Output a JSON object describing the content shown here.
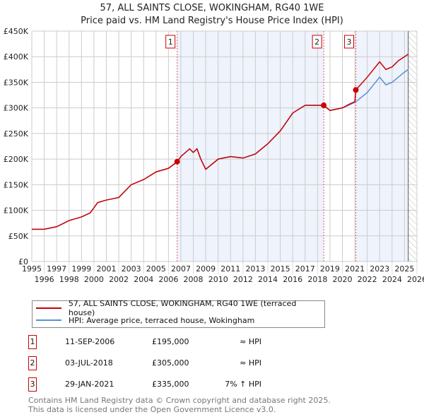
{
  "header": {
    "title": "57, ALL SAINTS CLOSE, WOKINGHAM, RG40 1WE",
    "subtitle": "Price paid vs. HM Land Registry's House Price Index (HPI)"
  },
  "chart_data": {
    "type": "line",
    "title": "57, ALL SAINTS CLOSE, WOKINGHAM, RG40 1WE",
    "subtitle": "Price paid vs. HM Land Registry's House Price Index (HPI)",
    "xlim": [
      1995,
      2026
    ],
    "ylim": [
      0,
      450000
    ],
    "x_ticks": [
      "1995",
      "1996",
      "1997",
      "1998",
      "1999",
      "2000",
      "2001",
      "2002",
      "2003",
      "2004",
      "2005",
      "2006",
      "2007",
      "2008",
      "2009",
      "2010",
      "2011",
      "2012",
      "2013",
      "2014",
      "2015",
      "2016",
      "2017",
      "2018",
      "2019",
      "2020",
      "2021",
      "2022",
      "2023",
      "2024",
      "2025",
      "2026"
    ],
    "y_ticks": [
      {
        "v": 0,
        "label": "£0"
      },
      {
        "v": 50000,
        "label": "£50K"
      },
      {
        "v": 100000,
        "label": "£100K"
      },
      {
        "v": 150000,
        "label": "£150K"
      },
      {
        "v": 200000,
        "label": "£200K"
      },
      {
        "v": 250000,
        "label": "£250K"
      },
      {
        "v": 300000,
        "label": "£300K"
      },
      {
        "v": 350000,
        "label": "£350K"
      },
      {
        "v": 400000,
        "label": "£400K"
      },
      {
        "v": 450000,
        "label": "£450K"
      }
    ],
    "grid": true,
    "series": [
      {
        "name": "57, ALL SAINTS CLOSE, WOKINGHAM, RG40 1WE (terraced house)",
        "color": "#cc0000",
        "x": [
          1995,
          1996,
          1997,
          1998,
          1999,
          1999.7,
          2000.3,
          2001,
          2002,
          2003,
          2004,
          2005,
          2006,
          2006.7,
          2007,
          2007.7,
          2008,
          2008.3,
          2008.6,
          2009,
          2010,
          2011,
          2012,
          2013,
          2014,
          2015,
          2016,
          2017,
          2018,
          2018.5,
          2019,
          2020,
          2020.6,
          2021.0,
          2021.08,
          2022,
          2022.5,
          2023,
          2023.5,
          2024,
          2024.5,
          2025,
          2025.3
        ],
        "y": [
          63000,
          63000,
          68000,
          80000,
          87000,
          95000,
          115000,
          120000,
          125000,
          150000,
          160000,
          175000,
          182000,
          195000,
          205000,
          220000,
          213000,
          220000,
          200000,
          180000,
          200000,
          205000,
          202000,
          210000,
          230000,
          255000,
          290000,
          305000,
          305000,
          305000,
          295000,
          300000,
          308000,
          312000,
          335000,
          360000,
          375000,
          390000,
          375000,
          380000,
          392000,
          400000,
          405000
        ]
      },
      {
        "name": "HPI: Average price, terraced house, Wokingham",
        "color": "#5b8fd4",
        "x": [
          1995,
          1996,
          1997,
          1998,
          1999,
          1999.7,
          2000.3,
          2001,
          2002,
          2003,
          2004,
          2005,
          2006,
          2006.7,
          2007,
          2007.7,
          2008,
          2008.3,
          2008.6,
          2009,
          2010,
          2011,
          2012,
          2013,
          2014,
          2015,
          2016,
          2017,
          2018,
          2018.5,
          2019,
          2020,
          2020.6,
          2021.08,
          2022,
          2022.5,
          2023,
          2023.5,
          2024,
          2024.5,
          2025,
          2025.3
        ],
        "y": [
          63000,
          63000,
          68000,
          80000,
          87000,
          95000,
          115000,
          120000,
          125000,
          150000,
          160000,
          175000,
          182000,
          194000,
          205000,
          220000,
          213000,
          220000,
          200000,
          180000,
          200000,
          205000,
          202000,
          210000,
          230000,
          255000,
          290000,
          305000,
          305000,
          304000,
          295000,
          300000,
          306000,
          312000,
          330000,
          345000,
          360000,
          345000,
          350000,
          360000,
          370000,
          375000
        ]
      }
    ],
    "sales": [
      {
        "num": "1",
        "x": 2006.7,
        "y": 195000,
        "date": "11-SEP-2006",
        "price": "£195,000",
        "hpi": "≈ HPI"
      },
      {
        "num": "2",
        "x": 2018.5,
        "y": 305000,
        "date": "03-JUL-2018",
        "price": "£305,000",
        "hpi": "≈ HPI"
      },
      {
        "num": "3",
        "x": 2021.08,
        "y": 335000,
        "date": "29-JAN-2021",
        "price": "£335,000",
        "hpi": "7% ↑ HPI"
      }
    ],
    "forecast_from": 2025.3
  },
  "legend": {
    "items": [
      "57, ALL SAINTS CLOSE, WOKINGHAM, RG40 1WE (terraced house)",
      "HPI: Average price, terraced house, Wokingham"
    ]
  },
  "footer": {
    "line1": "Contains HM Land Registry data © Crown copyright and database right 2025.",
    "line2": "This data is licensed under the Open Government Licence v3.0."
  }
}
